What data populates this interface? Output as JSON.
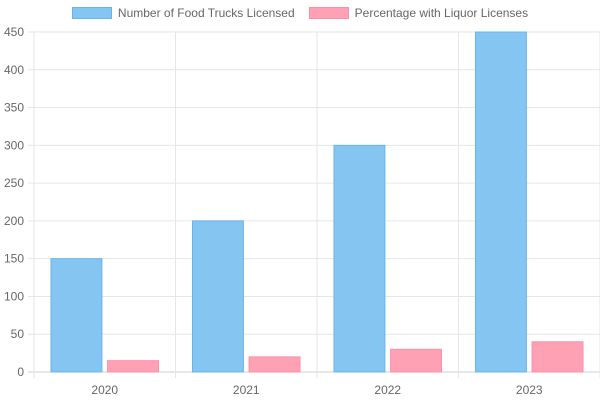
{
  "chart_data": {
    "type": "bar",
    "categories": [
      "2020",
      "2021",
      "2022",
      "2023"
    ],
    "series": [
      {
        "name": "Number of Food Trucks Licensed",
        "values": [
          150,
          200,
          300,
          450
        ],
        "fill": "#85c5f1",
        "stroke": "#6ab4ec"
      },
      {
        "name": "Percentage with Liquor Licenses",
        "values": [
          15,
          20,
          30,
          40
        ],
        "fill": "#ffa1b5",
        "stroke": "#ff8fa6"
      }
    ],
    "ylim": [
      0,
      450
    ],
    "yticks": [
      0,
      50,
      100,
      150,
      200,
      250,
      300,
      350,
      400,
      450
    ],
    "grid": true,
    "legend_position": "top"
  }
}
